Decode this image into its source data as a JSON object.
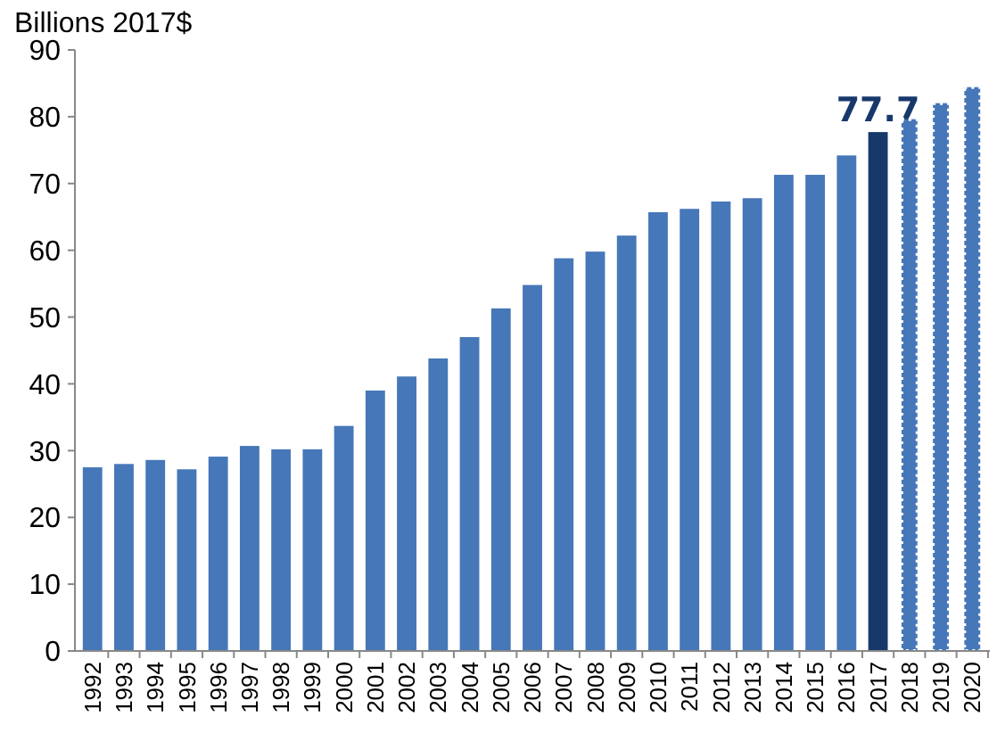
{
  "chart_data": {
    "type": "bar",
    "ylabel": "Billions 2017$",
    "categories": [
      "1992",
      "1993",
      "1994",
      "1995",
      "1996",
      "1997",
      "1998",
      "1999",
      "2000",
      "2001",
      "2002",
      "2003",
      "2004",
      "2005",
      "2006",
      "2007",
      "2008",
      "2009",
      "2010",
      "2011",
      "2012",
      "2013",
      "2014",
      "2015",
      "2016",
      "2017",
      "2018",
      "2019",
      "2020"
    ],
    "series": [
      {
        "color": "#4677b8",
        "colors": [
          null,
          null,
          null,
          null,
          null,
          null,
          null,
          null,
          null,
          null,
          null,
          null,
          null,
          null,
          null,
          null,
          null,
          null,
          null,
          null,
          null,
          null,
          null,
          null,
          null,
          "#17386b",
          null,
          null,
          null
        ],
        "values": [
          27.5,
          28.0,
          28.6,
          27.2,
          29.1,
          30.7,
          30.2,
          30.2,
          33.7,
          39.0,
          41.1,
          43.8,
          47.0,
          51.3,
          54.8,
          58.8,
          59.8,
          62.2,
          65.7,
          66.2,
          67.3,
          67.8,
          71.3,
          71.3,
          74.2,
          77.7,
          null,
          null,
          null
        ],
        "value_labels": [
          null,
          null,
          null,
          null,
          null,
          null,
          null,
          null,
          null,
          null,
          null,
          null,
          null,
          null,
          null,
          null,
          null,
          null,
          null,
          null,
          null,
          null,
          null,
          null,
          null,
          "77.7",
          null,
          null,
          null
        ]
      },
      {
        "color": "#4677b8",
        "line_style": "dotted",
        "values": [
          null,
          null,
          null,
          null,
          null,
          null,
          null,
          null,
          null,
          null,
          null,
          null,
          null,
          null,
          null,
          null,
          null,
          null,
          null,
          null,
          null,
          null,
          null,
          null,
          null,
          null,
          79.9,
          82.3,
          84.7
        ]
      }
    ],
    "ylim": [
      0,
      90
    ],
    "yticks": [
      0,
      10,
      20,
      30,
      40,
      50,
      60,
      70,
      80,
      90
    ],
    "grid": false
  }
}
